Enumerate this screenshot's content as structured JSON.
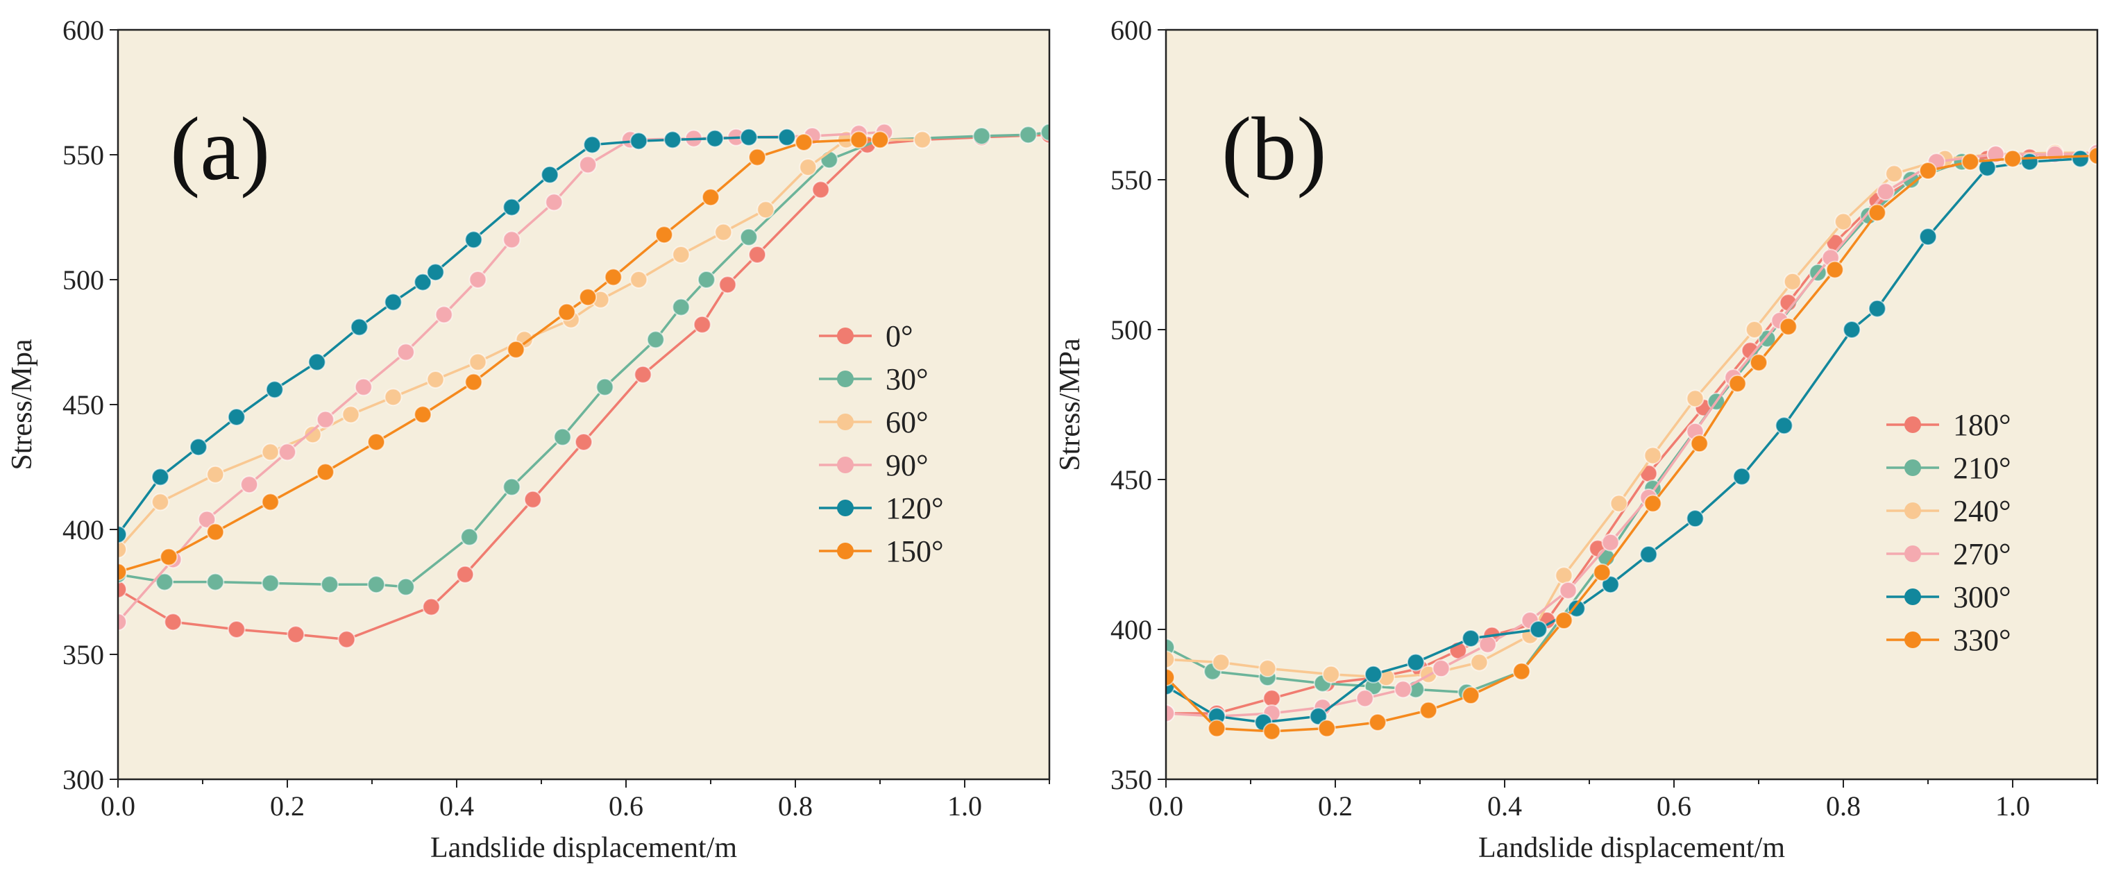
{
  "chart_data": [
    {
      "panel": "(a)",
      "type": "line",
      "xlabel": "Landslide displacement/m",
      "ylabel": "Stress/Mpa",
      "xlim": [
        0,
        1.1
      ],
      "ylim": [
        300,
        600
      ],
      "xticks": [
        "0.0",
        "0.2",
        "0.4",
        "0.6",
        "0.8",
        "1.0"
      ],
      "xtick_values": [
        0,
        0.2,
        0.4,
        0.6,
        0.8,
        1.0
      ],
      "yticks": [
        "300",
        "350",
        "400",
        "450",
        "500",
        "550",
        "600"
      ],
      "ytick_values": [
        300,
        350,
        400,
        450,
        500,
        550,
        600
      ],
      "background": "#f5eedd",
      "legend_position": "right",
      "series": [
        {
          "name": "0°",
          "color": "#f07c70",
          "x": [
            0,
            0.065,
            0.14,
            0.21,
            0.27,
            0.37,
            0.41,
            0.49,
            0.55,
            0.62,
            0.69,
            0.72,
            0.755,
            0.83,
            0.885,
            0.95,
            1.02,
            1.1
          ],
          "y": [
            376,
            363,
            360,
            358,
            356,
            369,
            382,
            412,
            435,
            462,
            482,
            498,
            510,
            536,
            554,
            556,
            557,
            558
          ]
        },
        {
          "name": "30°",
          "color": "#6cb49a",
          "x": [
            0,
            0.055,
            0.115,
            0.18,
            0.25,
            0.305,
            0.34,
            0.415,
            0.465,
            0.525,
            0.575,
            0.635,
            0.665,
            0.695,
            0.745,
            0.84,
            0.9,
            1.02,
            1.075,
            1.1
          ],
          "y": [
            382,
            379,
            379,
            378.5,
            378,
            378,
            377,
            397,
            417,
            437,
            457,
            476,
            489,
            500,
            517,
            548,
            556,
            557.5,
            558,
            559
          ]
        },
        {
          "name": "60°",
          "color": "#f9c892",
          "x": [
            0,
            0.05,
            0.115,
            0.18,
            0.23,
            0.275,
            0.325,
            0.375,
            0.425,
            0.48,
            0.535,
            0.57,
            0.615,
            0.665,
            0.715,
            0.765,
            0.815,
            0.86,
            0.95
          ],
          "y": [
            392,
            411,
            422,
            431,
            438,
            446,
            453,
            460,
            467,
            476,
            484,
            492,
            500,
            510,
            519,
            528,
            545,
            556,
            556
          ]
        },
        {
          "name": "90°",
          "color": "#f4aab0",
          "x": [
            0,
            0.065,
            0.105,
            0.155,
            0.2,
            0.245,
            0.29,
            0.34,
            0.385,
            0.425,
            0.465,
            0.515,
            0.555,
            0.605,
            0.68,
            0.73,
            0.82,
            0.875,
            0.905
          ],
          "y": [
            363,
            388,
            404,
            418,
            431,
            444,
            457,
            471,
            486,
            500,
            516,
            531,
            546,
            556,
            556.5,
            557,
            557.5,
            558.5,
            559
          ]
        },
        {
          "name": "120°",
          "color": "#12879c",
          "x": [
            0,
            0.05,
            0.095,
            0.14,
            0.185,
            0.235,
            0.285,
            0.325,
            0.36,
            0.375,
            0.42,
            0.465,
            0.51,
            0.56,
            0.615,
            0.655,
            0.705,
            0.745,
            0.79
          ],
          "y": [
            398,
            421,
            433,
            445,
            456,
            467,
            481,
            491,
            499,
            503,
            516,
            529,
            542,
            554,
            555.5,
            556,
            556.5,
            557,
            557
          ]
        },
        {
          "name": "150°",
          "color": "#f5891d",
          "x": [
            0,
            0.06,
            0.115,
            0.18,
            0.245,
            0.305,
            0.36,
            0.42,
            0.47,
            0.53,
            0.555,
            0.585,
            0.645,
            0.7,
            0.755,
            0.81,
            0.875,
            0.9
          ],
          "y": [
            383,
            389,
            399,
            411,
            423,
            435,
            446,
            459,
            472,
            487,
            493,
            501,
            518,
            533,
            549,
            555,
            556,
            556
          ]
        }
      ]
    },
    {
      "panel": "(b)",
      "type": "line",
      "xlabel": "Landslide displacement/m",
      "ylabel": "Stress/MPa",
      "xlim": [
        0,
        1.1
      ],
      "ylim": [
        350,
        600
      ],
      "xticks": [
        "0.0",
        "0.2",
        "0.4",
        "0.6",
        "0.8",
        "1.0"
      ],
      "xtick_values": [
        0,
        0.2,
        0.4,
        0.6,
        0.8,
        1.0
      ],
      "yticks": [
        "350",
        "400",
        "450",
        "500",
        "550",
        "600"
      ],
      "ytick_values": [
        350,
        400,
        450,
        500,
        550,
        600
      ],
      "background": "#f5eedd",
      "legend_position": "right",
      "series": [
        {
          "name": "180°",
          "color": "#f07c70",
          "x": [
            0,
            0.06,
            0.125,
            0.19,
            0.25,
            0.3,
            0.345,
            0.385,
            0.45,
            0.51,
            0.57,
            0.635,
            0.69,
            0.735,
            0.79,
            0.84,
            0.9,
            0.97,
            1.02,
            1.1
          ],
          "y": [
            372,
            372,
            377,
            382,
            384,
            387,
            393,
            398,
            403,
            427,
            452,
            474,
            493,
            509,
            529,
            543,
            553,
            557,
            557.5,
            558
          ]
        },
        {
          "name": "210°",
          "color": "#6cb49a",
          "x": [
            0,
            0.055,
            0.12,
            0.185,
            0.245,
            0.295,
            0.355,
            0.42,
            0.52,
            0.575,
            0.65,
            0.71,
            0.77,
            0.83,
            0.88,
            0.94,
            1.0,
            1.1
          ],
          "y": [
            394,
            386,
            384,
            382,
            381,
            380,
            379,
            386,
            424,
            447,
            476,
            497,
            519,
            538,
            550,
            556,
            557,
            558
          ]
        },
        {
          "name": "240°",
          "color": "#f9c892",
          "x": [
            0,
            0.065,
            0.12,
            0.195,
            0.26,
            0.31,
            0.37,
            0.43,
            0.47,
            0.535,
            0.575,
            0.625,
            0.695,
            0.74,
            0.8,
            0.86,
            0.92,
            0.98,
            1.05,
            1.1
          ],
          "y": [
            390,
            389,
            387,
            385,
            384,
            385,
            389,
            398,
            418,
            442,
            458,
            477,
            500,
            516,
            536,
            552,
            557,
            558.5,
            559,
            559
          ]
        },
        {
          "name": "270°",
          "color": "#f4aab0",
          "x": [
            0,
            0.06,
            0.125,
            0.185,
            0.235,
            0.28,
            0.325,
            0.38,
            0.43,
            0.475,
            0.525,
            0.57,
            0.625,
            0.67,
            0.725,
            0.785,
            0.85,
            0.91,
            0.98,
            1.05,
            1.1
          ],
          "y": [
            372,
            371,
            372,
            374,
            377,
            380,
            387,
            395,
            403,
            413,
            429,
            444,
            466,
            484,
            503,
            524,
            546,
            556,
            558.5,
            558.5,
            559
          ]
        },
        {
          "name": "300°",
          "color": "#12879c",
          "x": [
            0,
            0.06,
            0.115,
            0.18,
            0.245,
            0.295,
            0.36,
            0.44,
            0.485,
            0.525,
            0.57,
            0.625,
            0.68,
            0.73,
            0.81,
            0.84,
            0.9,
            0.97,
            1.02,
            1.08
          ],
          "y": [
            381,
            371,
            369,
            371,
            385,
            389,
            397,
            400,
            407,
            415,
            425,
            437,
            451,
            468,
            500,
            507,
            531,
            554,
            556,
            557
          ]
        },
        {
          "name": "330°",
          "color": "#f5891d",
          "x": [
            0,
            0.06,
            0.125,
            0.19,
            0.25,
            0.31,
            0.36,
            0.42,
            0.47,
            0.515,
            0.575,
            0.63,
            0.675,
            0.7,
            0.735,
            0.79,
            0.84,
            0.9,
            0.95,
            1.0,
            1.1
          ],
          "y": [
            384,
            367,
            366,
            367,
            369,
            373,
            378,
            386,
            403,
            419,
            442,
            462,
            482,
            489,
            501,
            520,
            539,
            553,
            556,
            557,
            558
          ]
        }
      ]
    }
  ]
}
